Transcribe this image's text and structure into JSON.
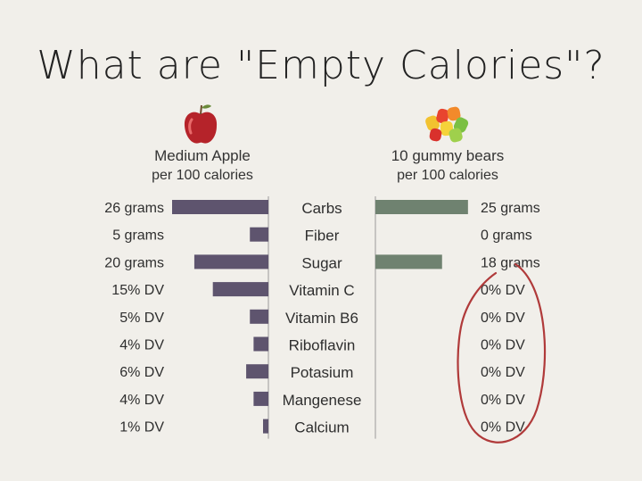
{
  "title": "What are \"Empty Calories\"?",
  "left_header": {
    "line1": "Medium Apple",
    "line2": "per 100 calories",
    "icon": "apple-icon"
  },
  "right_header": {
    "line1": "10 gummy bears",
    "line2": "per 100 calories",
    "icon": "gummy-bears-icon"
  },
  "colors": {
    "left_bar": "#5e546e",
    "right_bar": "#6f8270",
    "circle": "#b03a3a",
    "axis": "#9a9a9a"
  },
  "chart_data": {
    "type": "bar",
    "categories": [
      "Carbs",
      "Fiber",
      "Sugar",
      "Vitamin C",
      "Vitamin B6",
      "Riboflavin",
      "Potasium",
      "Mangenese",
      "Calcium"
    ],
    "series": [
      {
        "name": "Medium Apple",
        "values": [
          26,
          5,
          20,
          15,
          5,
          4,
          6,
          4,
          1
        ],
        "labels": [
          "26 grams",
          "5 grams",
          "20 grams",
          "15% DV",
          "5% DV",
          "4% DV",
          "6% DV",
          "4% DV",
          "1% DV"
        ]
      },
      {
        "name": "10 gummy bears",
        "values": [
          25,
          0,
          18,
          0,
          0,
          0,
          0,
          0,
          0
        ],
        "labels": [
          "25 grams",
          "0 grams",
          "18 grams",
          "0% DV",
          "0% DV",
          "0% DV",
          "0% DV",
          "0% DV",
          "0% DV"
        ]
      }
    ]
  }
}
